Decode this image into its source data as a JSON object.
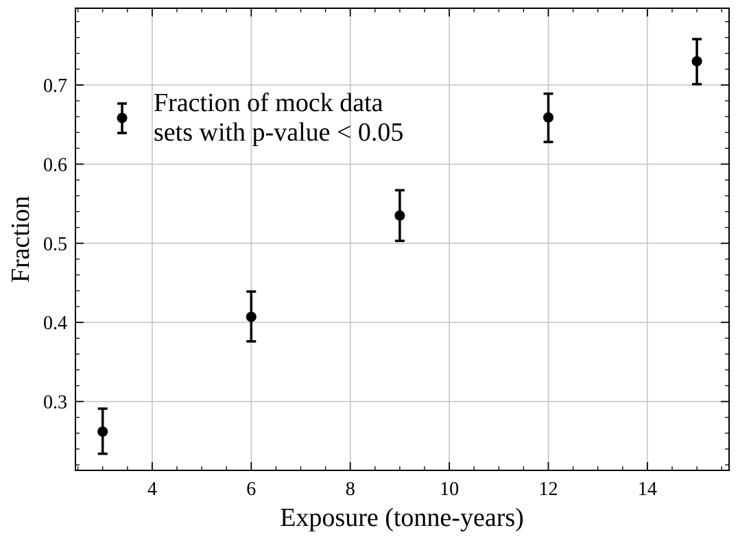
{
  "chart_data": {
    "type": "scatter",
    "xlabel": "Exposure (tonne-years)",
    "ylabel": "Fraction",
    "xlim": [
      2.45,
      15.65
    ],
    "ylim": [
      0.213,
      0.797
    ],
    "xticks": [
      4,
      6,
      8,
      10,
      12,
      14
    ],
    "yticks": [
      0.3,
      0.4,
      0.5,
      0.6,
      0.7
    ],
    "xtick_labels": [
      "4",
      "6",
      "8",
      "10",
      "12",
      "14"
    ],
    "ytick_labels": [
      "0.3",
      "0.4",
      "0.5",
      "0.6",
      "0.7"
    ],
    "grid": true,
    "legend_position": "upper-left",
    "series": [
      {
        "name": "Fraction of mock data sets with p-value < 0.05",
        "x": [
          3,
          6,
          9,
          12,
          15
        ],
        "y": [
          0.262,
          0.407,
          0.535,
          0.659,
          0.73
        ],
        "yerr_low": [
          0.028,
          0.031,
          0.032,
          0.031,
          0.029
        ],
        "yerr_high": [
          0.029,
          0.032,
          0.032,
          0.03,
          0.028
        ]
      }
    ],
    "legend": {
      "line1": "Fraction of mock data",
      "line2": "sets with p-value < 0.05"
    },
    "colors": {
      "marker": "#000000",
      "grid": "#c0c0c0",
      "frame": "#000000"
    }
  }
}
